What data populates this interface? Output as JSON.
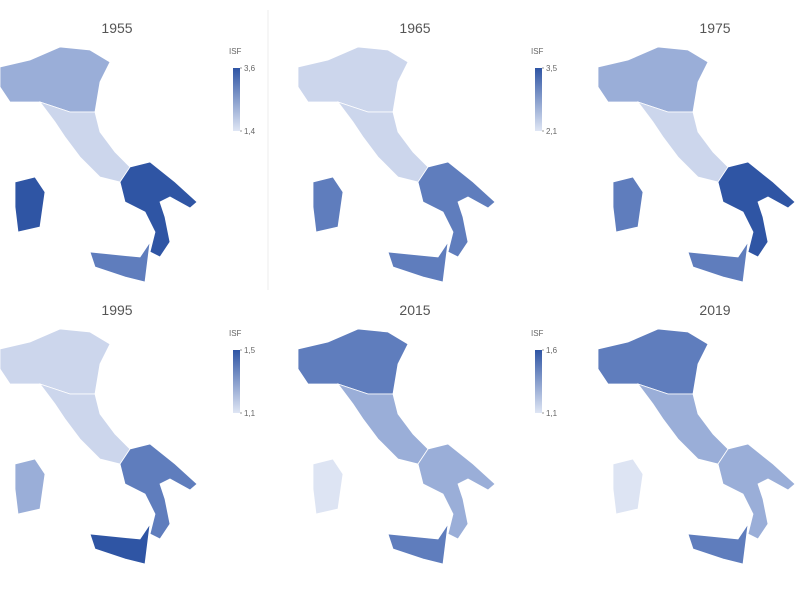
{
  "maps": [
    {
      "title": "1955",
      "legend": {
        "title": "ISF",
        "ticks": [
          {
            "value": 3.6,
            "label": "3,6"
          },
          {
            "value": 1.4,
            "label": "1,4"
          }
        ]
      }
    },
    {
      "title": "1965",
      "legend": {
        "title": "ISF",
        "ticks": [
          {
            "value": 3.5,
            "label": "3,5"
          },
          {
            "value": 2.1,
            "label": "2,1"
          }
        ]
      }
    },
    {
      "title": "1975"
    },
    {
      "title": "1995",
      "legend": {
        "title": "ISF",
        "ticks": [
          {
            "value": 1.5,
            "label": "1,5"
          },
          {
            "value": 1.1,
            "label": "1,1"
          }
        ]
      }
    },
    {
      "title": "2015",
      "legend": {
        "title": "ISF",
        "ticks": [
          {
            "value": 1.6,
            "label": "1,6"
          },
          {
            "value": 1.1,
            "label": "1,1"
          }
        ]
      }
    },
    {
      "title": "2019"
    }
  ]
}
